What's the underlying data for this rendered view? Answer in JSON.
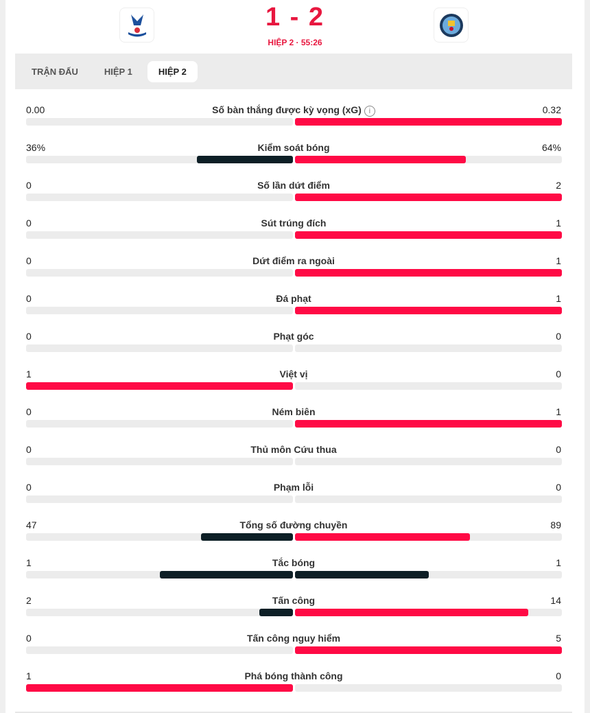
{
  "match": {
    "home_logo": "crystal-palace-crest",
    "away_logo": "manchester-city-crest",
    "score": "1 - 2",
    "status": "HIỆP 2 · 55:26"
  },
  "tabs": [
    {
      "label": "TRẬN ĐẤU",
      "active": false
    },
    {
      "label": "HIỆP 1",
      "active": false
    },
    {
      "label": "HIỆP 2",
      "active": true
    }
  ],
  "colors": {
    "leader": "#ff0a45",
    "other": "#0d1f26",
    "track": "#ececec"
  },
  "stats": [
    {
      "label": "Số bàn thắng được kỳ vọng (xG)",
      "home": "0.00",
      "away": "0.32",
      "h": 0,
      "a": 0.32,
      "info_icon": true
    },
    {
      "label": "Kiểm soát bóng",
      "home": "36%",
      "away": "64%",
      "h": 36,
      "a": 64
    },
    {
      "label": "Số lần dứt điểm",
      "home": "0",
      "away": "2",
      "h": 0,
      "a": 2
    },
    {
      "label": "Sút trúng đích",
      "home": "0",
      "away": "1",
      "h": 0,
      "a": 1
    },
    {
      "label": "Dứt điểm ra ngoài",
      "home": "0",
      "away": "1",
      "h": 0,
      "a": 1
    },
    {
      "label": "Đá phạt",
      "home": "0",
      "away": "1",
      "h": 0,
      "a": 1
    },
    {
      "label": "Phạt góc",
      "home": "0",
      "away": "0",
      "h": 0,
      "a": 0
    },
    {
      "label": "Việt vị",
      "home": "1",
      "away": "0",
      "h": 1,
      "a": 0
    },
    {
      "label": "Ném biên",
      "home": "0",
      "away": "1",
      "h": 0,
      "a": 1
    },
    {
      "label": "Thủ môn Cứu thua",
      "home": "0",
      "away": "0",
      "h": 0,
      "a": 0
    },
    {
      "label": "Phạm lỗi",
      "home": "0",
      "away": "0",
      "h": 0,
      "a": 0
    },
    {
      "label": "Tổng số đường chuyền",
      "home": "47",
      "away": "89",
      "h": 47,
      "a": 89
    },
    {
      "label": "Tắc bóng",
      "home": "1",
      "away": "1",
      "h": 1,
      "a": 1
    },
    {
      "label": "Tấn công",
      "home": "2",
      "away": "14",
      "h": 2,
      "a": 14
    },
    {
      "label": "Tấn công nguy hiểm",
      "home": "0",
      "away": "5",
      "h": 0,
      "a": 5
    },
    {
      "label": "Phá bóng thành công",
      "home": "1",
      "away": "0",
      "h": 1,
      "a": 0
    }
  ]
}
